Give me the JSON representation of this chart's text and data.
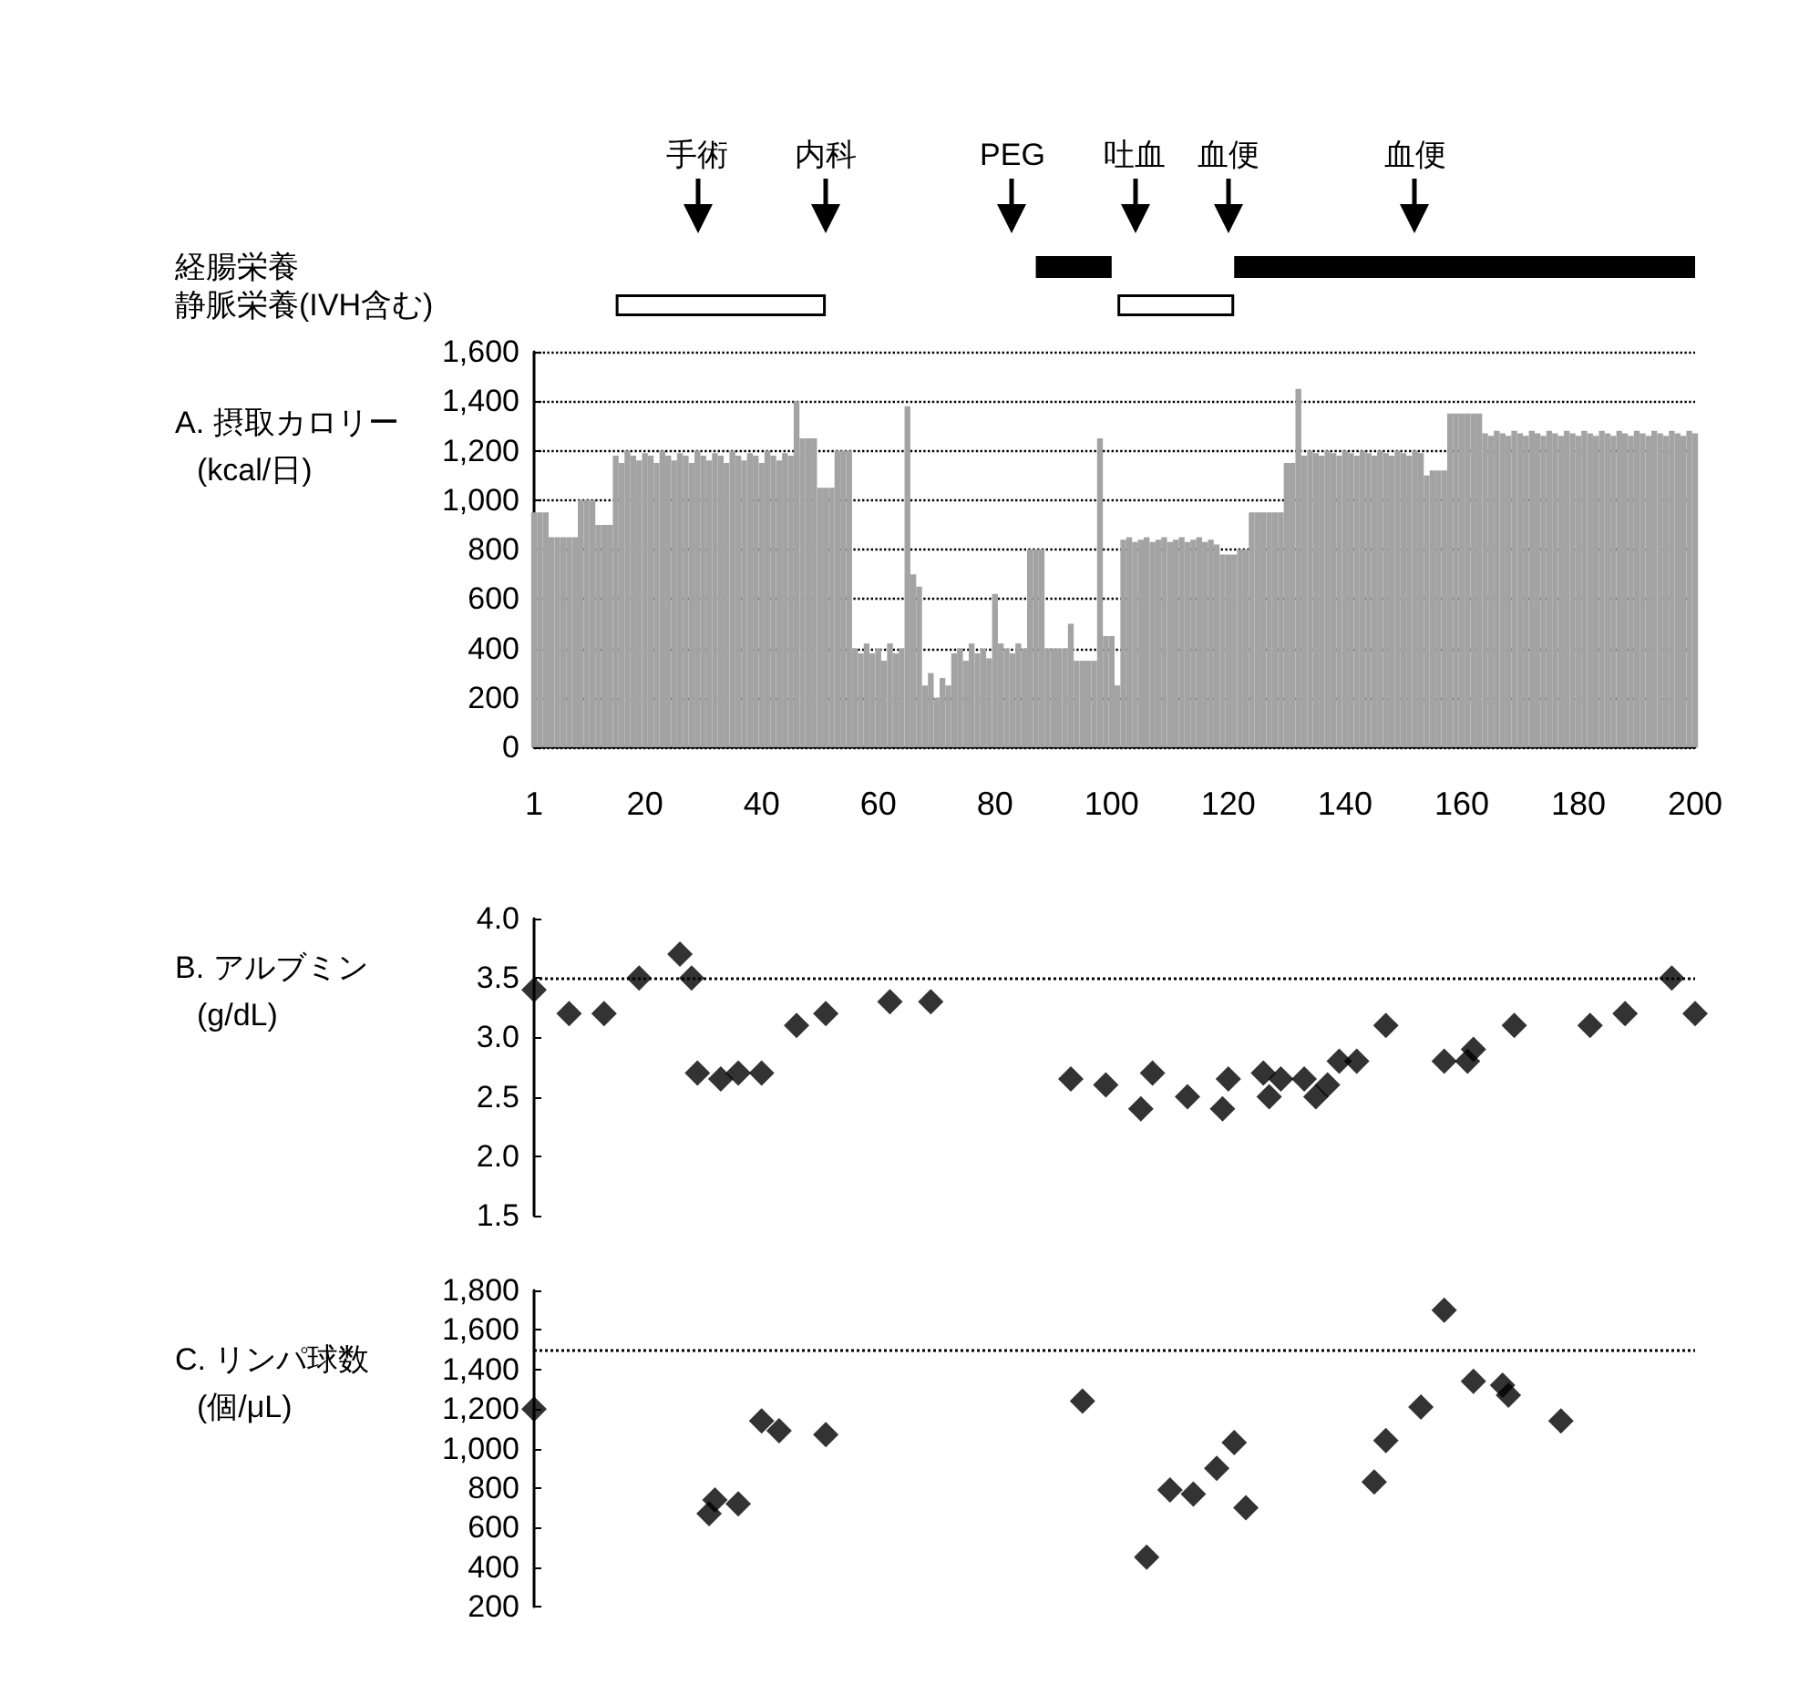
{
  "chart_data": [
    {
      "type": "bar",
      "orientation": "horizontal",
      "categories": [
        "経腸栄養",
        "静脈栄養(IVH含む)"
      ],
      "xlim": [
        1,
        200
      ],
      "tick_labels": "y",
      "series": [
        {
          "color": "#000000",
          "base": [
            87,
            null
          ],
          "values": [
            13,
            null
          ]
        },
        {
          "color": "#000000",
          "base": [
            121,
            null
          ],
          "values": [
            79,
            null
          ]
        },
        {
          "color": "#ffffff",
          "base": [
            null,
            15
          ],
          "values": [
            null,
            36
          ]
        },
        {
          "color": "#ffffff",
          "base": [
            null,
            101
          ],
          "values": [
            null,
            20
          ]
        }
      ],
      "ref_lines": [
        {
          "axis": "x",
          "value": 29,
          "label": "手術"
        },
        {
          "axis": "x",
          "value": 51,
          "label": "内科"
        },
        {
          "axis": "x",
          "value": 83,
          "label": "PEG"
        },
        {
          "axis": "x",
          "value": 104,
          "label": "吐血"
        },
        {
          "axis": "x",
          "value": 120,
          "label": "血便"
        },
        {
          "axis": "x",
          "value": 152,
          "label": "血便"
        }
      ]
    },
    {
      "type": "bar",
      "title": "A. 摂取カロリー",
      "ylabel": "(kcal/日)",
      "color": "#a3a3a3",
      "grid": "y",
      "x": [
        1,
        2,
        3,
        4,
        5,
        6,
        7,
        8,
        9,
        10,
        11,
        12,
        13,
        14,
        15,
        16,
        17,
        18,
        19,
        20,
        21,
        22,
        23,
        24,
        25,
        26,
        27,
        28,
        29,
        30,
        31,
        32,
        33,
        34,
        35,
        36,
        37,
        38,
        39,
        40,
        41,
        42,
        43,
        44,
        45,
        46,
        47,
        48,
        49,
        50,
        51,
        52,
        53,
        54,
        55,
        56,
        57,
        58,
        59,
        60,
        61,
        62,
        63,
        64,
        65,
        66,
        67,
        68,
        69,
        70,
        71,
        72,
        73,
        74,
        75,
        76,
        77,
        78,
        79,
        80,
        81,
        82,
        83,
        84,
        85,
        86,
        87,
        88,
        89,
        90,
        91,
        92,
        93,
        94,
        95,
        96,
        97,
        98,
        99,
        100,
        101,
        102,
        103,
        104,
        105,
        106,
        107,
        108,
        109,
        110,
        111,
        112,
        113,
        114,
        115,
        116,
        117,
        118,
        119,
        120,
        121,
        122,
        123,
        124,
        125,
        126,
        127,
        128,
        129,
        130,
        131,
        132,
        133,
        134,
        135,
        136,
        137,
        138,
        139,
        140,
        141,
        142,
        143,
        144,
        145,
        146,
        147,
        148,
        149,
        150,
        151,
        152,
        153,
        154,
        155,
        156,
        157,
        158,
        159,
        160,
        161,
        162,
        163,
        164,
        165,
        166,
        167,
        168,
        169,
        170,
        171,
        172,
        173,
        174,
        175,
        176,
        177,
        178,
        179,
        180,
        181,
        182,
        183,
        184,
        185,
        186,
        187,
        188,
        189,
        190,
        191,
        192,
        193,
        194,
        195,
        196,
        197,
        198,
        199,
        200
      ],
      "values": [
        950,
        950,
        950,
        850,
        850,
        850,
        850,
        850,
        1000,
        1000,
        1000,
        900,
        900,
        900,
        1180,
        1150,
        1200,
        1180,
        1160,
        1190,
        1180,
        1150,
        1200,
        1180,
        1160,
        1190,
        1180,
        1150,
        1200,
        1180,
        1160,
        1190,
        1180,
        1150,
        1200,
        1180,
        1160,
        1190,
        1180,
        1150,
        1200,
        1180,
        1160,
        1190,
        1180,
        1400,
        1250,
        1250,
        1250,
        1050,
        1050,
        1050,
        1200,
        1200,
        1200,
        400,
        380,
        420,
        380,
        400,
        350,
        420,
        380,
        400,
        1380,
        700,
        650,
        250,
        300,
        200,
        280,
        250,
        380,
        400,
        350,
        420,
        380,
        400,
        360,
        620,
        420,
        400,
        380,
        420,
        400,
        800,
        800,
        800,
        400,
        400,
        400,
        400,
        500,
        350,
        350,
        350,
        350,
        1250,
        450,
        450,
        250,
        840,
        850,
        830,
        840,
        850,
        830,
        840,
        850,
        830,
        840,
        850,
        830,
        840,
        850,
        830,
        840,
        820,
        780,
        780,
        780,
        800,
        800,
        950,
        950,
        950,
        950,
        950,
        950,
        1150,
        1150,
        1450,
        1180,
        1200,
        1190,
        1180,
        1200,
        1190,
        1180,
        1200,
        1190,
        1180,
        1200,
        1190,
        1180,
        1200,
        1190,
        1180,
        1200,
        1190,
        1180,
        1200,
        1190,
        1100,
        1120,
        1120,
        1120,
        1350,
        1350,
        1350,
        1350,
        1350,
        1350,
        1270,
        1260,
        1280,
        1270,
        1260,
        1280,
        1270,
        1260,
        1280,
        1270,
        1260,
        1280,
        1270,
        1260,
        1280,
        1270,
        1260,
        1280,
        1270,
        1260,
        1280,
        1270,
        1260,
        1280,
        1270,
        1260,
        1280,
        1270,
        1260,
        1280,
        1270,
        1260,
        1280,
        1270,
        1260,
        1280,
        1270
      ],
      "xlim": [
        1,
        200
      ],
      "xticks": [
        1,
        20,
        40,
        60,
        80,
        100,
        120,
        140,
        160,
        180,
        200
      ],
      "ylim": [
        0,
        1600
      ],
      "yticks": [
        0,
        200,
        400,
        600,
        800,
        {
          "value": 1000,
          "label": "1,000"
        },
        {
          "value": 1200,
          "label": "1,200"
        },
        {
          "value": 1400,
          "label": "1,400"
        },
        {
          "value": 1600,
          "label": "1,600"
        }
      ]
    },
    {
      "type": "scatter",
      "title": "B. アルブミン",
      "ylabel": "(g/dL)",
      "color": "#000000",
      "marker": "diamond",
      "tick_labels": "y",
      "x": [
        1,
        7,
        13,
        19,
        26,
        28,
        29,
        33,
        36,
        40,
        46,
        51,
        62,
        69,
        93,
        99,
        105,
        107,
        113,
        119,
        120,
        126,
        127,
        129,
        133,
        135,
        137,
        139,
        142,
        147,
        157,
        161,
        162,
        169,
        182,
        188,
        196,
        200
      ],
      "values": [
        3.4,
        3.2,
        3.2,
        3.5,
        3.7,
        3.5,
        2.7,
        2.65,
        2.7,
        2.7,
        3.1,
        3.2,
        3.3,
        3.3,
        2.65,
        2.6,
        2.4,
        2.7,
        2.5,
        2.4,
        2.65,
        2.7,
        2.5,
        2.65,
        2.65,
        2.5,
        2.6,
        2.8,
        2.8,
        3.1,
        2.8,
        2.8,
        2.9,
        3.1,
        3.1,
        3.2,
        3.5,
        3.2
      ],
      "xlim": [
        1,
        200
      ],
      "ylim": [
        1.5,
        4.0
      ],
      "yticks": [
        {
          "value": 1.5,
          "label": "1.5"
        },
        {
          "value": 2,
          "label": "2.0"
        },
        {
          "value": 2.5,
          "label": "2.5"
        },
        {
          "value": 3,
          "label": "3.0"
        },
        {
          "value": 3.5,
          "label": "3.5"
        },
        {
          "value": 4,
          "label": "4.0"
        }
      ],
      "ref_lines": [
        {
          "axis": "y",
          "value": 3.5,
          "line_style": "dotted",
          "color": "#000000"
        }
      ]
    },
    {
      "type": "scatter",
      "title": "C. リンパ球数",
      "ylabel": "(個/μL)",
      "color": "#000000",
      "marker": "diamond",
      "tick_labels": "y",
      "x": [
        1,
        31,
        32,
        36,
        40,
        43,
        51,
        95,
        106,
        110,
        114,
        118,
        121,
        123,
        145,
        147,
        153,
        157,
        162,
        167,
        168,
        177
      ],
      "values": [
        1200,
        670,
        740,
        720,
        1140,
        1090,
        1070,
        1240,
        450,
        790,
        770,
        900,
        1030,
        700,
        830,
        1040,
        1210,
        1700,
        1340,
        1320,
        1270,
        1140
      ],
      "xlim": [
        1,
        200
      ],
      "ylim": [
        200,
        1800
      ],
      "yticks": [
        200,
        400,
        600,
        800,
        {
          "value": 1000,
          "label": "1,000"
        },
        {
          "value": 1200,
          "label": "1,200"
        },
        {
          "value": 1400,
          "label": "1,400"
        },
        {
          "value": 1600,
          "label": "1,600"
        },
        {
          "value": 1800,
          "label": "1,800"
        }
      ],
      "ref_lines": [
        {
          "axis": "y",
          "value": 1500,
          "line_style": "dotted",
          "color": "#000000"
        }
      ]
    }
  ]
}
